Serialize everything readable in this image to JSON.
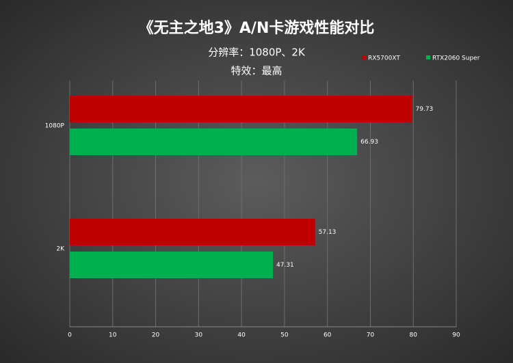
{
  "chart_data": {
    "type": "hbar",
    "title": "《无主之地3》A/N卡游戏性能对比",
    "subtitle": [
      "分辨率：1080P、2K",
      "特效：最高"
    ],
    "categories": [
      "1080P",
      "2K"
    ],
    "series": [
      {
        "name": "RX5700XT",
        "color": "#c00000",
        "values": [
          79.73,
          57.13
        ]
      },
      {
        "name": "RTX2060 Super",
        "color": "#00b050",
        "values": [
          66.93,
          47.31
        ]
      }
    ],
    "xlim": [
      0,
      90
    ],
    "xticks": [
      0,
      10,
      20,
      30,
      40,
      50,
      60,
      70,
      80,
      90
    ],
    "grid": true,
    "legend": "top-right"
  }
}
